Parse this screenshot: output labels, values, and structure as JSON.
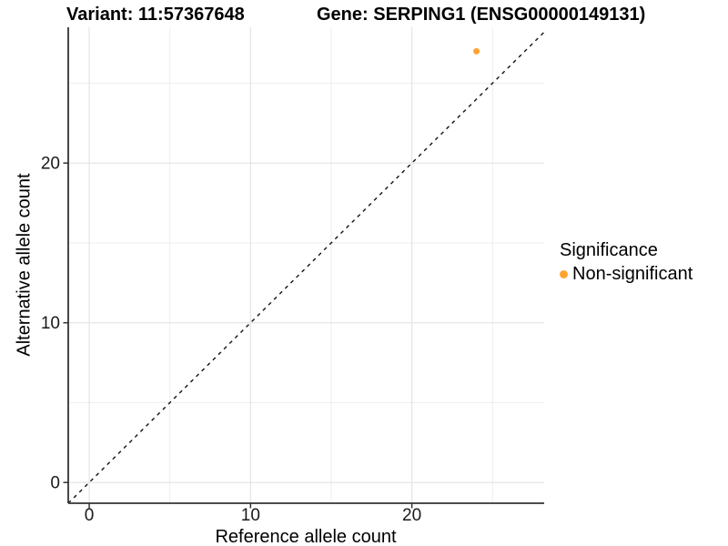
{
  "titles": {
    "left": "Variant: 11:57367648",
    "right": "Gene: SERPING1 (ENSG00000149131)"
  },
  "chart_data": {
    "type": "scatter",
    "xlabel": "Reference allele count",
    "ylabel": "Alternative allele count",
    "xlim": [
      -1.3,
      28.2
    ],
    "ylim": [
      -1.3,
      28.5
    ],
    "xticks": [
      0,
      10,
      20
    ],
    "yticks": [
      0,
      10,
      20
    ],
    "minor_gridlines_x": [
      5,
      15,
      25
    ],
    "minor_gridlines_y": [
      5,
      15,
      25
    ],
    "grid": true,
    "identity_line": {
      "slope": 1,
      "intercept": 0,
      "style": "dashed",
      "color": "#111111"
    },
    "series": [
      {
        "name": "Non-significant",
        "color": "#FFA330",
        "points": [
          {
            "x": 24,
            "y": 27
          }
        ]
      }
    ],
    "legend": {
      "title": "Significance",
      "position": "right",
      "entries": [
        {
          "label": "Non-significant",
          "color": "#FFA330"
        }
      ]
    }
  },
  "colors": {
    "background": "#ffffff",
    "axis_line": "#333333",
    "tick_mark": "#333333",
    "tick_label": "#1a1a1a",
    "grid_major": "#e4e4e4",
    "grid_minor": "#ededed",
    "point": "#FFA330"
  }
}
